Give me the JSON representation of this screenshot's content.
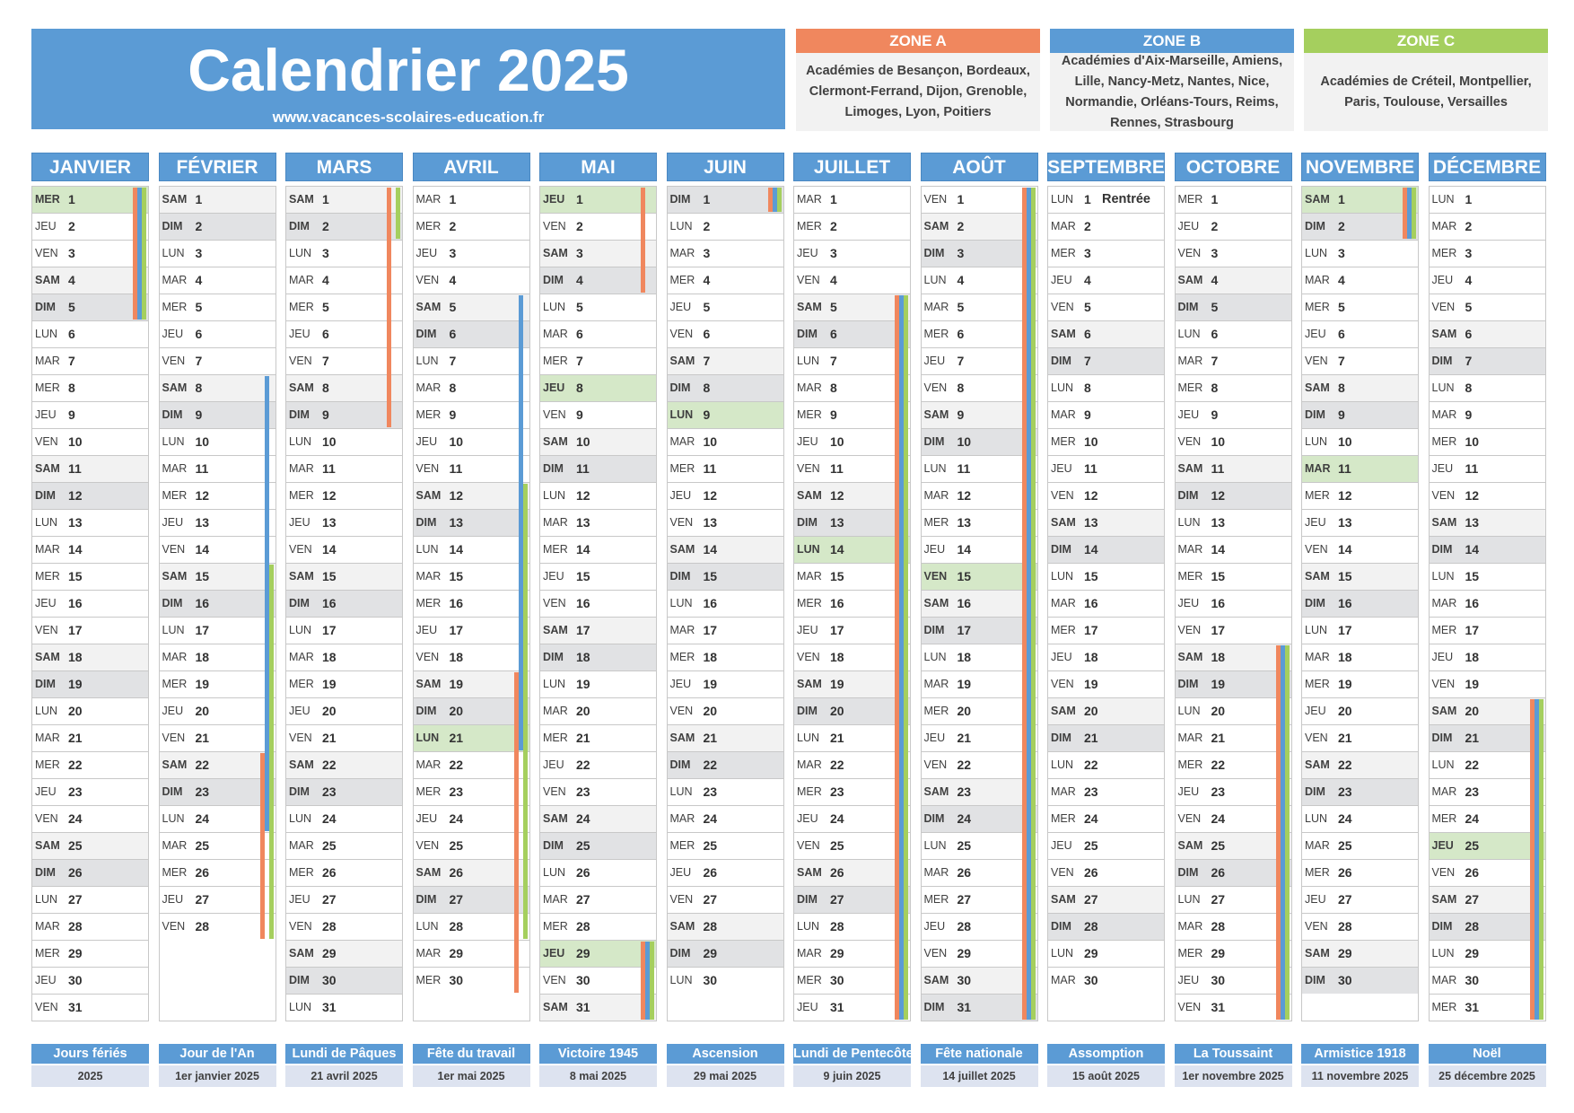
{
  "header": {
    "title": "Calendrier 2025",
    "url": "www.vacances-scolaires-education.fr"
  },
  "zones": [
    {
      "name": "ZONE A",
      "color": "#f0875e",
      "academies": "Académies de Besançon, Bordeaux, Clermont-Ferrand, Dijon, Grenoble, Limoges, Lyon, Poitiers"
    },
    {
      "name": "ZONE B",
      "color": "#5b9bd5",
      "academies": "Académies d'Aix-Marseille, Amiens, Lille, Nancy-Metz, Nantes, Nice, Normandie, Orléans-Tours, Reims, Rennes, Strasbourg"
    },
    {
      "name": "ZONE C",
      "color": "#a5cf5e",
      "academies": "Académies de Créteil, Montpellier, Paris, Toulouse, Versailles"
    }
  ],
  "colors": {
    "zone_a": "#f0875e",
    "zone_b": "#5b9bd5",
    "zone_c": "#a5cf5e",
    "month_header": "#5b9bd5",
    "holiday_bg": "#d5e8c8",
    "weekend_bg": "#e1e2e4"
  },
  "day_abbr": [
    "LUN",
    "MAR",
    "MER",
    "JEU",
    "VEN",
    "SAM",
    "DIM"
  ],
  "months": [
    {
      "name": "JANVIER",
      "days": 31,
      "start": 2,
      "holidays": [
        1
      ],
      "bars": [
        {
          "zone": "A",
          "from": 1,
          "to": 5
        },
        {
          "zone": "B",
          "from": 1,
          "to": 5
        },
        {
          "zone": "C",
          "from": 1,
          "to": 5
        }
      ]
    },
    {
      "name": "FÉVRIER",
      "days": 28,
      "start": 5,
      "holidays": [],
      "bars": [
        {
          "zone": "B",
          "from": 8,
          "to": 24
        },
        {
          "zone": "C",
          "from": 15,
          "to": 28
        },
        {
          "zone": "A",
          "from": 22,
          "to": 28
        }
      ]
    },
    {
      "name": "MARS",
      "days": 31,
      "start": 5,
      "holidays": [],
      "bars": [
        {
          "zone": "A",
          "from": 1,
          "to": 9
        },
        {
          "zone": "C",
          "from": 1,
          "to": 2
        }
      ]
    },
    {
      "name": "AVRIL",
      "days": 30,
      "start": 1,
      "holidays": [
        21
      ],
      "bars": [
        {
          "zone": "B",
          "from": 5,
          "to": 21
        },
        {
          "zone": "C",
          "from": 12,
          "to": 28
        },
        {
          "zone": "A",
          "from": 19,
          "to": 30
        }
      ]
    },
    {
      "name": "MAI",
      "days": 31,
      "start": 3,
      "holidays": [
        1,
        8,
        29
      ],
      "bars": [
        {
          "zone": "A",
          "from": 1,
          "to": 4
        },
        {
          "zone": "A",
          "from": 29,
          "to": 31
        },
        {
          "zone": "B",
          "from": 29,
          "to": 31
        },
        {
          "zone": "C",
          "from": 29,
          "to": 31
        }
      ]
    },
    {
      "name": "JUIN",
      "days": 30,
      "start": 6,
      "holidays": [
        9
      ],
      "bars": [
        {
          "zone": "A",
          "from": 1,
          "to": 1
        },
        {
          "zone": "B",
          "from": 1,
          "to": 1
        },
        {
          "zone": "C",
          "from": 1,
          "to": 1
        }
      ]
    },
    {
      "name": "JUILLET",
      "days": 31,
      "start": 1,
      "holidays": [
        14
      ],
      "bars": [
        {
          "zone": "A",
          "from": 5,
          "to": 31
        },
        {
          "zone": "B",
          "from": 5,
          "to": 31
        },
        {
          "zone": "C",
          "from": 5,
          "to": 31
        }
      ]
    },
    {
      "name": "AOÛT",
      "days": 31,
      "start": 4,
      "holidays": [
        15
      ],
      "bars": [
        {
          "zone": "A",
          "from": 1,
          "to": 31
        },
        {
          "zone": "B",
          "from": 1,
          "to": 31
        },
        {
          "zone": "C",
          "from": 1,
          "to": 31
        }
      ]
    },
    {
      "name": "SEPTEMBRE",
      "days": 30,
      "start": 0,
      "holidays": [],
      "bars": [],
      "notes": [
        {
          "day": 1,
          "text": "Rentrée"
        }
      ]
    },
    {
      "name": "OCTOBRE",
      "days": 31,
      "start": 2,
      "holidays": [],
      "bars": [
        {
          "zone": "A",
          "from": 18,
          "to": 31
        },
        {
          "zone": "B",
          "from": 18,
          "to": 31
        },
        {
          "zone": "C",
          "from": 18,
          "to": 31
        }
      ]
    },
    {
      "name": "NOVEMBRE",
      "days": 30,
      "start": 5,
      "holidays": [
        1,
        11
      ],
      "bars": [
        {
          "zone": "A",
          "from": 1,
          "to": 2
        },
        {
          "zone": "B",
          "from": 1,
          "to": 2
        },
        {
          "zone": "C",
          "from": 1,
          "to": 2
        }
      ]
    },
    {
      "name": "DÉCEMBRE",
      "days": 31,
      "start": 0,
      "holidays": [
        25
      ],
      "bars": [
        {
          "zone": "A",
          "from": 20,
          "to": 31
        },
        {
          "zone": "B",
          "from": 20,
          "to": 31
        },
        {
          "zone": "C",
          "from": 20,
          "to": 31
        }
      ]
    }
  ],
  "public_holidays": [
    {
      "name": "Jours fériés",
      "date": "2025"
    },
    {
      "name": "Jour de l'An",
      "date": "1er janvier 2025"
    },
    {
      "name": "Lundi de Pâques",
      "date": "21 avril 2025"
    },
    {
      "name": "Fête du travail",
      "date": "1er mai 2025"
    },
    {
      "name": "Victoire 1945",
      "date": "8 mai 2025"
    },
    {
      "name": "Ascension",
      "date": "29 mai 2025"
    },
    {
      "name": "Lundi de Pentecôte",
      "date": "9 juin 2025"
    },
    {
      "name": "Fête nationale",
      "date": "14 juillet 2025"
    },
    {
      "name": "Assomption",
      "date": "15 août 2025"
    },
    {
      "name": "La Toussaint",
      "date": "1er novembre 2025"
    },
    {
      "name": "Armistice 1918",
      "date": "11 novembre 2025"
    },
    {
      "name": "Noël",
      "date": "25 décembre 2025"
    }
  ]
}
